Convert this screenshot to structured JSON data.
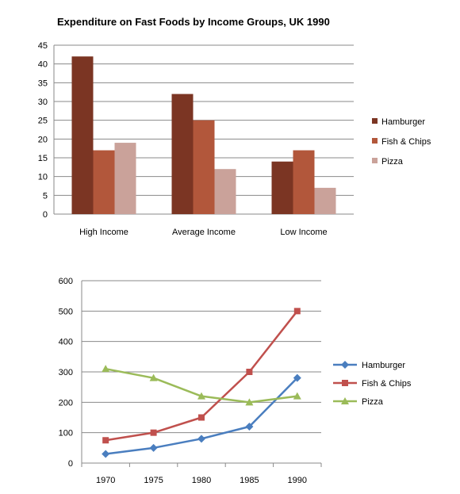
{
  "chart_data": [
    {
      "type": "bar",
      "title": "Expenditure on Fast Foods by Income Groups, UK 1990",
      "categories": [
        "High Income",
        "Average Income",
        "Low Income"
      ],
      "series": [
        {
          "name": "Hamburger",
          "color": "#7b3523",
          "values": [
            42,
            32,
            14
          ]
        },
        {
          "name": "Fish & Chips",
          "color": "#b2573b",
          "values": [
            17,
            25,
            17
          ]
        },
        {
          "name": "Pizza",
          "color": "#caa29a",
          "values": [
            19,
            12,
            7
          ]
        }
      ],
      "ylim": [
        0,
        45
      ],
      "yticks": [
        0,
        5,
        10,
        15,
        20,
        25,
        30,
        35,
        40,
        45
      ],
      "grid": true,
      "legend": "right"
    },
    {
      "type": "line",
      "title": "",
      "x": [
        1970,
        1975,
        1980,
        1985,
        1990
      ],
      "series": [
        {
          "name": "Hamburger",
          "color": "#4a7ebf",
          "marker": "diamond",
          "values": [
            30,
            50,
            80,
            120,
            280
          ]
        },
        {
          "name": "Fish & Chips",
          "color": "#c0504d",
          "marker": "square",
          "values": [
            75,
            100,
            150,
            300,
            500
          ]
        },
        {
          "name": "Pizza",
          "color": "#9bbb59",
          "marker": "triangle",
          "values": [
            310,
            280,
            220,
            200,
            220
          ]
        }
      ],
      "ylim": [
        0,
        600
      ],
      "yticks": [
        0,
        100,
        200,
        300,
        400,
        500,
        600
      ],
      "grid": true,
      "legend": "right"
    }
  ]
}
